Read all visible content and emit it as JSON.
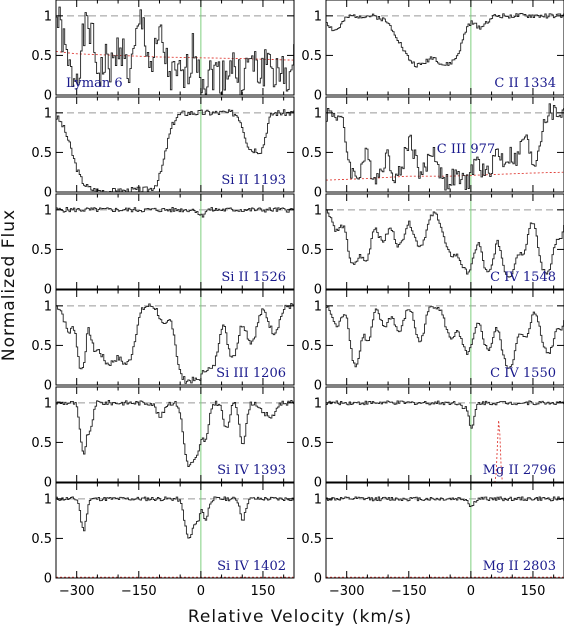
{
  "chart_data": {
    "type": "line",
    "xlabel": "Relative Velocity (km/s)",
    "ylabel": "Normalized Flux",
    "xlim": [
      -350,
      225
    ],
    "ylim": [
      0,
      1.2
    ],
    "xticks": [
      -300,
      -150,
      0,
      150
    ],
    "xtick_labels": [
      "−300",
      "−150",
      "0",
      "150"
    ],
    "yticks": [
      0,
      0.5,
      1
    ],
    "ytick_labels": [
      "0",
      "0.5",
      "1"
    ],
    "reference_lines": {
      "continuum": 1.0,
      "zero_velocity": 0
    },
    "colors": {
      "spectrum": "#222222",
      "continuum": "#999999",
      "error": "#e0403a",
      "zero_line": "#7fcf7f",
      "label": "#1a1a8c"
    },
    "panels": [
      {
        "label": "Lyman 6",
        "col": 0,
        "row": 0,
        "label_pos": "bottom-left",
        "error": [
          [
            -350,
            0.55
          ],
          [
            -300,
            0.52
          ],
          [
            -200,
            0.5
          ],
          [
            -100,
            0.48
          ],
          [
            0,
            0.47
          ],
          [
            100,
            0.46
          ],
          [
            225,
            0.44
          ]
        ],
        "comps": [
          [
            -310,
            1.4,
            15
          ],
          [
            -245,
            1.2,
            12
          ],
          [
            -215,
            1.0,
            10
          ],
          [
            -175,
            1.2,
            12
          ],
          [
            -120,
            1.0,
            10
          ],
          [
            -70,
            1.5,
            15
          ],
          [
            -40,
            1.3,
            12
          ],
          [
            10,
            1.6,
            15
          ],
          [
            50,
            1.4,
            14
          ],
          [
            95,
            1.6,
            15
          ],
          [
            140,
            1.3,
            14
          ],
          [
            185,
            1.5,
            14
          ],
          [
            215,
            1.3,
            10
          ]
        ],
        "noise": 0.25,
        "seed": 1
      },
      {
        "label": "C II 1334",
        "col": 1,
        "row": 0,
        "label_pos": "bottom-right",
        "error": null,
        "comps": [
          [
            -330,
            0.2,
            15
          ],
          [
            -150,
            0.4,
            30
          ],
          [
            -120,
            0.7,
            28
          ],
          [
            -65,
            0.8,
            18
          ],
          [
            -35,
            0.5,
            15
          ],
          [
            20,
            0.15,
            15
          ]
        ],
        "noise": 0.03,
        "seed": 2
      },
      {
        "label": "Si II 1193",
        "col": 0,
        "row": 1,
        "label_pos": "bottom-right",
        "error": null,
        "comps": [
          [
            -250,
            3.5,
            35
          ],
          [
            -190,
            3.5,
            30
          ],
          [
            -130,
            3.0,
            25
          ],
          [
            120,
            0.6,
            14
          ],
          [
            145,
            0.5,
            10
          ]
        ],
        "noise": 0.04,
        "seed": 3
      },
      {
        "label": "C III 977",
        "col": 1,
        "row": 1,
        "label_pos": "top-center",
        "error": [
          [
            -350,
            0.15
          ],
          [
            -250,
            0.17
          ],
          [
            -150,
            0.2
          ],
          [
            -50,
            0.2
          ],
          [
            50,
            0.22
          ],
          [
            150,
            0.24
          ],
          [
            225,
            0.25
          ]
        ],
        "comps": [
          [
            -280,
            1.6,
            15
          ],
          [
            -230,
            1.6,
            15
          ],
          [
            -180,
            1.6,
            15
          ],
          [
            -120,
            1.4,
            15
          ],
          [
            -60,
            2.0,
            18
          ],
          [
            -15,
            2.0,
            16
          ],
          [
            35,
            1.5,
            15
          ],
          [
            80,
            0.9,
            14
          ],
          [
            110,
            0.8,
            10
          ],
          [
            150,
            1.0,
            12
          ]
        ],
        "noise": 0.12,
        "seed": 4
      },
      {
        "label": "Si II 1526",
        "col": 0,
        "row": 2,
        "label_pos": "bottom-right",
        "error": null,
        "comps": [
          [
            0,
            0.08,
            6
          ]
        ],
        "noise": 0.03,
        "seed": 5
      },
      {
        "label": "C IV 1548",
        "col": 1,
        "row": 2,
        "label_pos": "bottom-right",
        "error": null,
        "comps": [
          [
            -325,
            0.3,
            10
          ],
          [
            -285,
            1.2,
            12
          ],
          [
            -255,
            1.0,
            10
          ],
          [
            -215,
            0.5,
            12
          ],
          [
            -175,
            0.6,
            12
          ],
          [
            -125,
            0.6,
            14
          ],
          [
            -50,
            0.8,
            15
          ],
          [
            -10,
            1.5,
            15
          ],
          [
            40,
            1.6,
            12
          ],
          [
            90,
            1.8,
            14
          ],
          [
            125,
            0.7,
            10
          ],
          [
            180,
            1.6,
            14
          ],
          [
            215,
            0.4,
            8
          ]
        ],
        "noise": 0.03,
        "seed": 6
      },
      {
        "label": "Si III 1206",
        "col": 0,
        "row": 3,
        "label_pos": "bottom-right",
        "error": null,
        "comps": [
          [
            -320,
            0.4,
            10
          ],
          [
            -290,
            1.6,
            8
          ],
          [
            -260,
            0.5,
            8
          ],
          [
            -225,
            1.3,
            20
          ],
          [
            -180,
            1.2,
            15
          ],
          [
            -90,
            0.3,
            10
          ],
          [
            -40,
            2.5,
            14
          ],
          [
            -10,
            2.5,
            14
          ],
          [
            25,
            1.5,
            12
          ],
          [
            75,
            1.0,
            12
          ],
          [
            120,
            0.6,
            12
          ],
          [
            175,
            0.4,
            12
          ]
        ],
        "noise": 0.04,
        "seed": 7
      },
      {
        "label": "C IV 1550",
        "col": 1,
        "row": 3,
        "label_pos": "bottom-right",
        "error": null,
        "comps": [
          [
            -325,
            0.3,
            10
          ],
          [
            -280,
            1.4,
            10
          ],
          [
            -250,
            0.6,
            8
          ],
          [
            -210,
            0.3,
            10
          ],
          [
            -175,
            0.4,
            10
          ],
          [
            -125,
            0.6,
            10
          ],
          [
            -50,
            0.5,
            12
          ],
          [
            -10,
            0.9,
            14
          ],
          [
            40,
            0.8,
            12
          ],
          [
            90,
            1.5,
            14
          ],
          [
            130,
            0.5,
            10
          ],
          [
            185,
            0.9,
            14
          ],
          [
            218,
            0.3,
            6
          ]
        ],
        "noise": 0.03,
        "seed": 8
      },
      {
        "label": "Si IV 1393",
        "col": 0,
        "row": 4,
        "label_pos": "bottom-right",
        "error": null,
        "comps": [
          [
            -285,
            1.0,
            7
          ],
          [
            -268,
            0.4,
            5
          ],
          [
            -100,
            0.2,
            8
          ],
          [
            -30,
            1.5,
            10
          ],
          [
            -10,
            0.9,
            8
          ],
          [
            10,
            0.6,
            7
          ],
          [
            60,
            0.4,
            7
          ],
          [
            100,
            0.7,
            7
          ],
          [
            150,
            0.15,
            8
          ],
          [
            170,
            0.2,
            8
          ]
        ],
        "noise": 0.03,
        "seed": 9
      },
      {
        "label": "Mg II 2796",
        "col": 1,
        "row": 4,
        "label_pos": "bottom-right",
        "error": [
          [
            -350,
            0
          ],
          [
            60,
            0
          ],
          [
            63,
            0.3
          ],
          [
            66,
            0.78
          ],
          [
            69,
            0.78
          ],
          [
            72,
            0.3
          ],
          [
            75,
            0
          ],
          [
            225,
            0
          ]
        ],
        "comps": [
          [
            0,
            0.4,
            6
          ],
          [
            -20,
            0.05,
            6
          ]
        ],
        "noise": 0.025,
        "seed": 10
      },
      {
        "label": "Si IV 1402",
        "col": 0,
        "row": 5,
        "label_pos": "bottom-right",
        "error": [
          [
            -350,
            0.01
          ],
          [
            225,
            0.01
          ]
        ],
        "comps": [
          [
            -285,
            0.5,
            6
          ],
          [
            -30,
            0.7,
            9
          ],
          [
            -10,
            0.3,
            6
          ],
          [
            10,
            0.3,
            6
          ],
          [
            100,
            0.3,
            6
          ]
        ],
        "noise": 0.025,
        "seed": 11
      },
      {
        "label": "Mg II 2803",
        "col": 1,
        "row": 5,
        "label_pos": "bottom-right",
        "error": [
          [
            -350,
            0.01
          ],
          [
            225,
            0.01
          ]
        ],
        "comps": [
          [
            0,
            0.1,
            6
          ]
        ],
        "noise": 0.025,
        "seed": 12
      }
    ]
  }
}
